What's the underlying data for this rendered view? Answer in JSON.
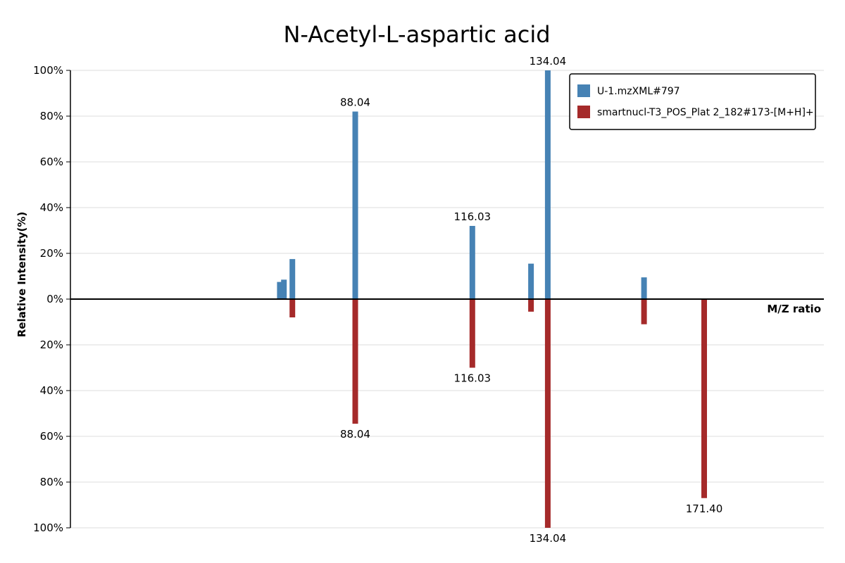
{
  "chart_data": {
    "type": "bar",
    "subtype": "mirror-spectrum",
    "title": "N-Acetyl-L-aspartic acid",
    "xlabel": "M/Z ratio",
    "ylabel": "Relative Intensity(%)",
    "ylim": [
      -100,
      100
    ],
    "yticks": [
      {
        "value": 100,
        "label": "100%"
      },
      {
        "value": 80,
        "label": "80%"
      },
      {
        "value": 60,
        "label": "60%"
      },
      {
        "value": 40,
        "label": "40%"
      },
      {
        "value": 20,
        "label": "20%"
      },
      {
        "value": 0,
        "label": "0%"
      },
      {
        "value": -20,
        "label": "20%"
      },
      {
        "value": -40,
        "label": "40%"
      },
      {
        "value": -60,
        "label": "60%"
      },
      {
        "value": -80,
        "label": "80%"
      },
      {
        "value": -100,
        "label": "100%"
      }
    ],
    "grid": true,
    "legend_position": "top-right",
    "series": [
      {
        "name": "U-1.mzXML#797",
        "color": "#4682b4",
        "direction": "up",
        "peaks": [
          {
            "mz": 70.03,
            "intensity": 7.5,
            "label": ""
          },
          {
            "mz": 71.01,
            "intensity": 8.5,
            "label": ""
          },
          {
            "mz": 73.03,
            "intensity": 17.5,
            "label": ""
          },
          {
            "mz": 88.04,
            "intensity": 82,
            "label": "88.04"
          },
          {
            "mz": 116.03,
            "intensity": 32,
            "label": "116.03"
          },
          {
            "mz": 130.03,
            "intensity": 15.5,
            "label": ""
          },
          {
            "mz": 134.04,
            "intensity": 100,
            "label": "134.04"
          },
          {
            "mz": 157.03,
            "intensity": 9.5,
            "label": ""
          }
        ]
      },
      {
        "name": "smartnucl-T3_POS_Plat 2_182#173-[M+H]+",
        "color": "#a52a2a",
        "direction": "down",
        "peaks": [
          {
            "mz": 73.03,
            "intensity": 8,
            "label": ""
          },
          {
            "mz": 88.04,
            "intensity": 54.5,
            "label": "88.04"
          },
          {
            "mz": 116.03,
            "intensity": 30,
            "label": "116.03"
          },
          {
            "mz": 130.03,
            "intensity": 5.5,
            "label": ""
          },
          {
            "mz": 134.04,
            "intensity": 100,
            "label": "134.04"
          },
          {
            "mz": 157.03,
            "intensity": 11,
            "label": ""
          },
          {
            "mz": 171.4,
            "intensity": 87,
            "label": "171.40"
          }
        ]
      }
    ]
  }
}
